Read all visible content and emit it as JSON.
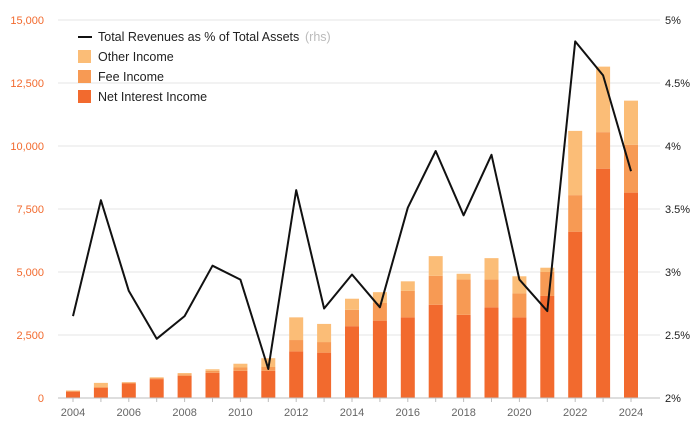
{
  "chart_data": {
    "type": "bar",
    "stacked": true,
    "x": [
      2004,
      2005,
      2006,
      2007,
      2008,
      2009,
      2010,
      2011,
      2012,
      2013,
      2014,
      2015,
      2016,
      2017,
      2018,
      2019,
      2020,
      2021,
      2022,
      2023,
      2024
    ],
    "x_tick_labels": [
      "2004",
      "2006",
      "2008",
      "2010",
      "2012",
      "2014",
      "2016",
      "2018",
      "2020",
      "2022",
      "2024"
    ],
    "y_left": {
      "ylim": [
        0,
        15000
      ],
      "tick_values": [
        0,
        2500,
        5000,
        7500,
        10000,
        12500,
        15000
      ],
      "tick_labels": [
        "0",
        "2,500",
        "5,000",
        "7,500",
        "10,000",
        "12,500",
        "15,000"
      ]
    },
    "y_right": {
      "ylim": [
        2.0,
        5.0
      ],
      "tick_values": [
        2.0,
        2.5,
        3.0,
        3.5,
        4.0,
        4.5,
        5.0
      ],
      "tick_labels": [
        "2%",
        "2.5%",
        "3%",
        "3.5%",
        "4%",
        "4.5%",
        "5%"
      ]
    },
    "series": [
      {
        "name": "Net Interest Income",
        "type": "bar",
        "axis": "left",
        "color": "#f26a2e",
        "values": [
          250,
          400,
          580,
          750,
          880,
          1000,
          1080,
          1080,
          1850,
          1800,
          2850,
          3070,
          3200,
          3700,
          3300,
          3600,
          3200,
          4050,
          6600,
          9100,
          8150
        ]
      },
      {
        "name": "Fee Income",
        "type": "bar",
        "axis": "left",
        "color": "#f79a54",
        "values": [
          30,
          50,
          30,
          40,
          60,
          80,
          130,
          150,
          450,
          420,
          650,
          700,
          1050,
          1150,
          1400,
          1100,
          950,
          950,
          1450,
          1450,
          1900
        ]
      },
      {
        "name": "Other Income",
        "type": "bar",
        "axis": "left",
        "color": "#fbbd77",
        "values": [
          20,
          150,
          20,
          30,
          50,
          60,
          150,
          350,
          900,
          720,
          440,
          430,
          380,
          780,
          230,
          850,
          680,
          170,
          2550,
          2600,
          1750
        ]
      },
      {
        "name": "Total Revenues as % of Total Assets",
        "name_note": "(rhs)",
        "type": "line",
        "axis": "right",
        "color": "#111111",
        "values": [
          2.65,
          3.57,
          2.85,
          2.47,
          2.65,
          3.05,
          2.94,
          2.23,
          3.65,
          2.71,
          2.98,
          2.72,
          3.51,
          3.96,
          3.45,
          3.93,
          2.94,
          2.69,
          4.83,
          4.56,
          3.8
        ]
      }
    ],
    "legend_position": "top-left",
    "grid": true
  }
}
